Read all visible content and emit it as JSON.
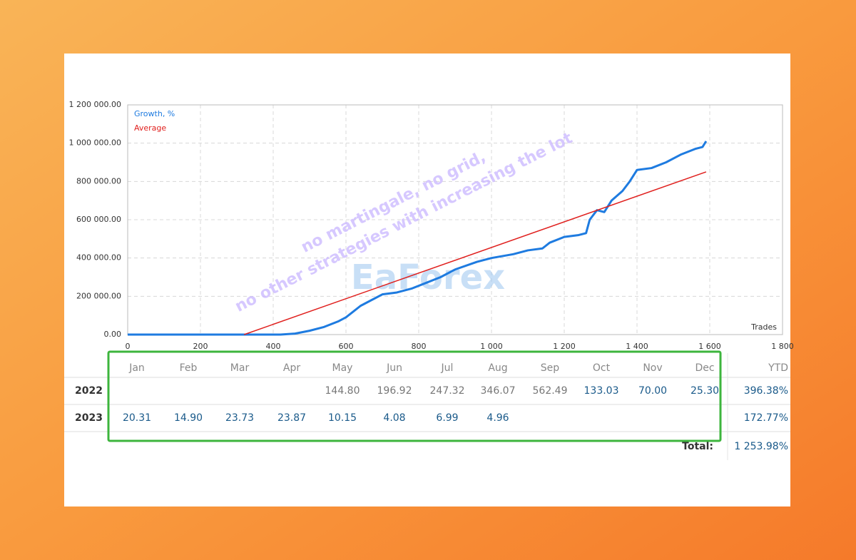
{
  "chart_data": {
    "type": "line",
    "x_label": "Trades",
    "xlim": [
      0,
      1800
    ],
    "xticks": [
      0,
      200,
      400,
      600,
      800,
      {
        "value": 1000,
        "label": "1 000"
      },
      {
        "value": 1200,
        "label": "1 200"
      },
      {
        "value": 1400,
        "label": "1 400"
      },
      {
        "value": 1600,
        "label": "1 600"
      },
      {
        "value": 1800,
        "label": "1 800"
      }
    ],
    "ylim": [
      0,
      1200000
    ],
    "yticks": [
      {
        "value": 0,
        "label": "0.00"
      },
      {
        "value": 200000,
        "label": "200 000.00"
      },
      {
        "value": 400000,
        "label": "400 000.00"
      },
      {
        "value": 600000,
        "label": "600 000.00"
      },
      {
        "value": 800000,
        "label": "800 000.00"
      },
      {
        "value": 1000000,
        "label": "1 000 000.00"
      },
      {
        "value": 1200000,
        "label": "1 200 000.00"
      }
    ],
    "grid": true,
    "series": [
      {
        "name": "Growth, %",
        "color": "#1e7be0",
        "x": [
          0,
          320,
          420,
          460,
          500,
          540,
          580,
          600,
          620,
          640,
          660,
          700,
          740,
          780,
          820,
          860,
          900,
          960,
          1000,
          1060,
          1100,
          1140,
          1160,
          1200,
          1240,
          1260,
          1270,
          1290,
          1310,
          1330,
          1360,
          1380,
          1400,
          1440,
          1480,
          1520,
          1560,
          1580,
          1590
        ],
        "values": [
          0,
          0,
          0,
          5000,
          20000,
          40000,
          70000,
          90000,
          120000,
          150000,
          170000,
          210000,
          220000,
          240000,
          270000,
          300000,
          340000,
          380000,
          400000,
          420000,
          440000,
          450000,
          480000,
          510000,
          520000,
          530000,
          600000,
          650000,
          640000,
          700000,
          750000,
          800000,
          860000,
          870000,
          900000,
          940000,
          970000,
          980000,
          1010000
        ]
      },
      {
        "name": "Average",
        "color": "#e0201e",
        "x": [
          320,
          1590
        ],
        "values": [
          0,
          850000
        ]
      }
    ]
  },
  "watermark": {
    "line1": "no martingale, no grid,",
    "line2": "no other strategies with increasing the lot",
    "brand": "EaForex"
  },
  "table": {
    "columns": [
      "Jan",
      "Feb",
      "Mar",
      "Apr",
      "May",
      "Jun",
      "Jul",
      "Aug",
      "Sep",
      "Oct",
      "Nov",
      "Dec",
      "YTD"
    ],
    "rows": [
      {
        "year": "2022",
        "cells": [
          null,
          null,
          null,
          null,
          "144.80",
          "196.92",
          "247.32",
          "346.07",
          "562.49",
          "133.03",
          "70.00",
          "25.30",
          "396.38%"
        ]
      },
      {
        "year": "2023",
        "cells": [
          "20.31",
          "14.90",
          "23.73",
          "23.87",
          "10.15",
          "4.08",
          "6.99",
          "4.96",
          null,
          null,
          null,
          null,
          "172.77%"
        ]
      }
    ],
    "total_label": "Total:",
    "total": "1 253.98%"
  }
}
